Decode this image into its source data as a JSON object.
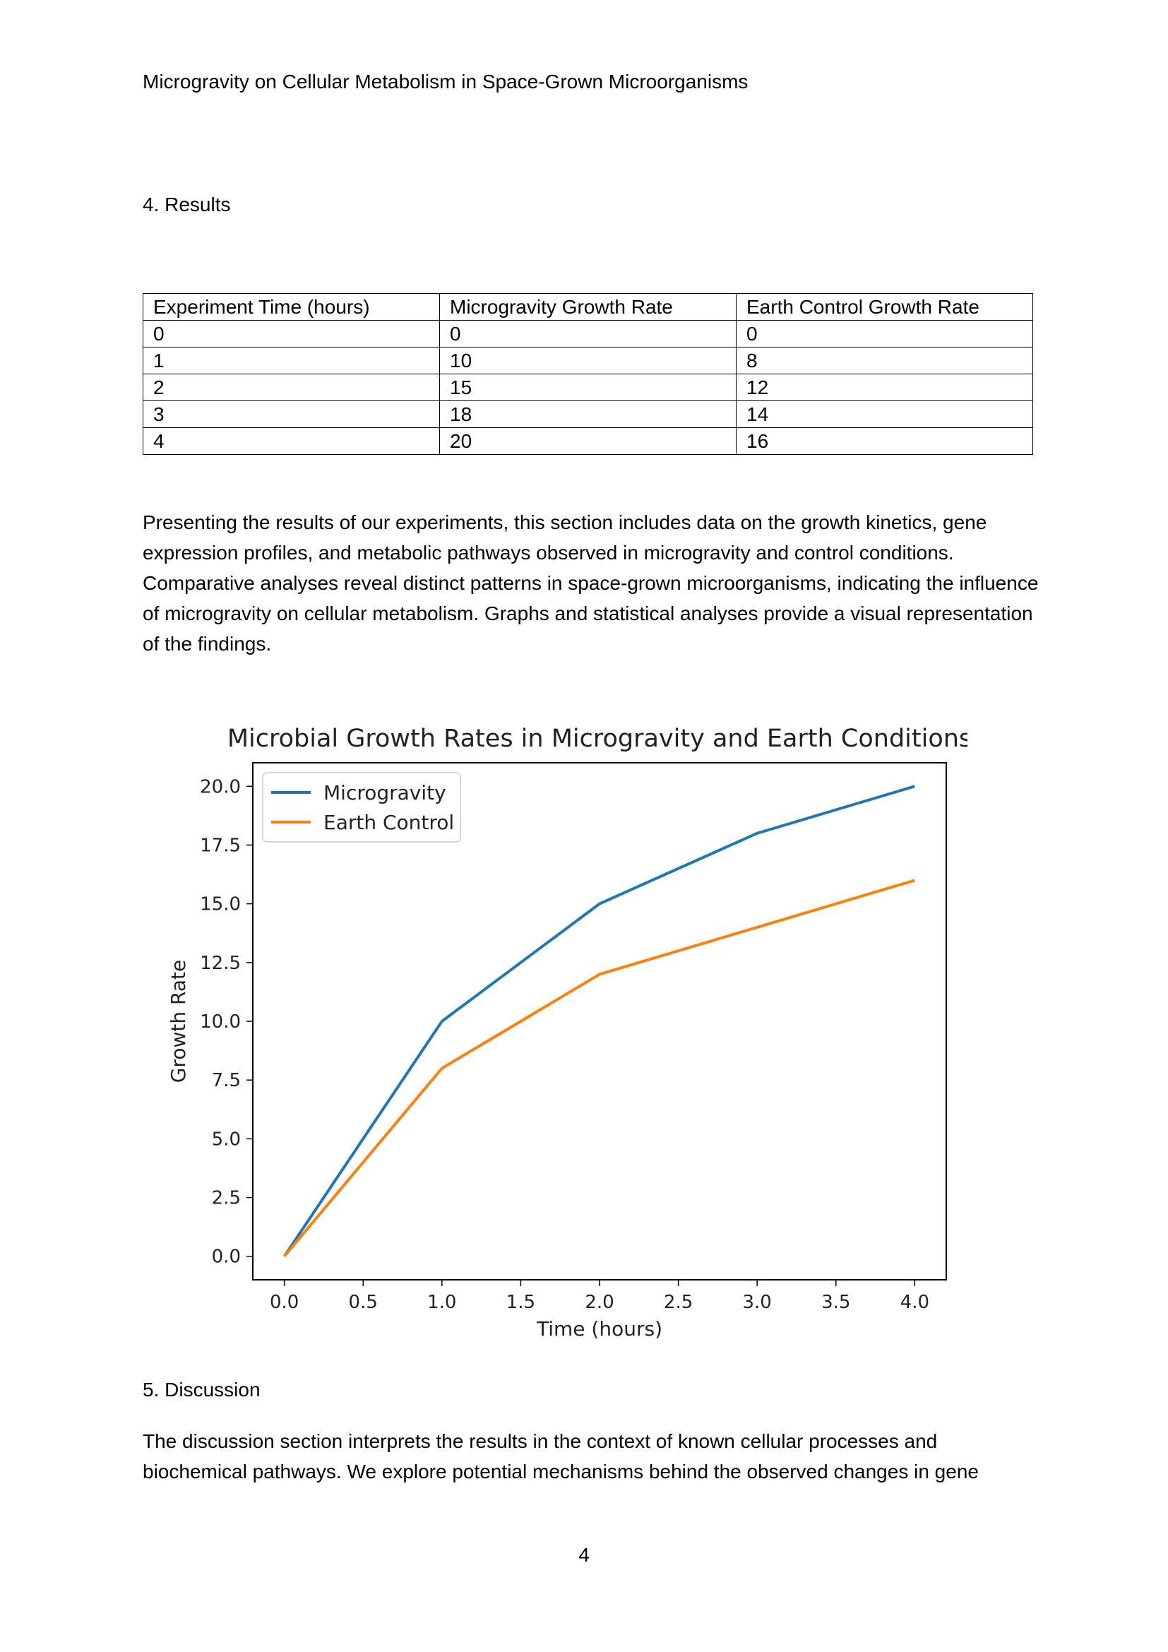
{
  "header": {
    "running_title": "Microgravity on Cellular Metabolism in Space-Grown Microorganisms"
  },
  "results": {
    "heading": "4. Results",
    "table": {
      "columns": [
        "Experiment Time (hours)",
        "Microgravity Growth Rate",
        "Earth Control Growth Rate"
      ],
      "rows": [
        [
          "0",
          "0",
          "0"
        ],
        [
          "1",
          "10",
          "8"
        ],
        [
          "2",
          "15",
          "12"
        ],
        [
          "3",
          "18",
          "14"
        ],
        [
          "4",
          "20",
          "16"
        ]
      ]
    },
    "paragraph": "Presenting the results of our experiments, this section includes data on the growth kinetics, gene expression profiles, and metabolic pathways observed in microgravity and control conditions. Comparative analyses reveal distinct patterns in space-grown microorganisms, indicating the influence of microgravity on cellular metabolism. Graphs and statistical analyses provide a visual representation of the findings."
  },
  "chart_data": {
    "type": "line",
    "title": "Microbial Growth Rates in Microgravity and Earth Conditions",
    "xlabel": "Time (hours)",
    "ylabel": "Growth Rate",
    "x": [
      0,
      1,
      2,
      3,
      4
    ],
    "series": [
      {
        "name": "Microgravity",
        "values": [
          0,
          10,
          15,
          18,
          20
        ],
        "color": "#1f77b4"
      },
      {
        "name": "Earth Control",
        "values": [
          0,
          8,
          12,
          14,
          16
        ],
        "color": "#ff7f0e"
      }
    ],
    "xlim": [
      -0.2,
      4.2
    ],
    "ylim": [
      -1,
      21
    ],
    "xticks": [
      "0.0",
      "0.5",
      "1.0",
      "1.5",
      "2.0",
      "2.5",
      "3.0",
      "3.5",
      "4.0"
    ],
    "yticks": [
      "0.0",
      "2.5",
      "5.0",
      "7.5",
      "10.0",
      "12.5",
      "15.0",
      "17.5",
      "20.0"
    ],
    "grid": false,
    "legend": "top-left"
  },
  "discussion": {
    "heading": "5. Discussion",
    "paragraph": "The discussion section interprets the results in the context of known cellular processes and biochemical pathways. We explore potential mechanisms behind the observed changes in gene"
  },
  "footer": {
    "page_number": "4"
  }
}
